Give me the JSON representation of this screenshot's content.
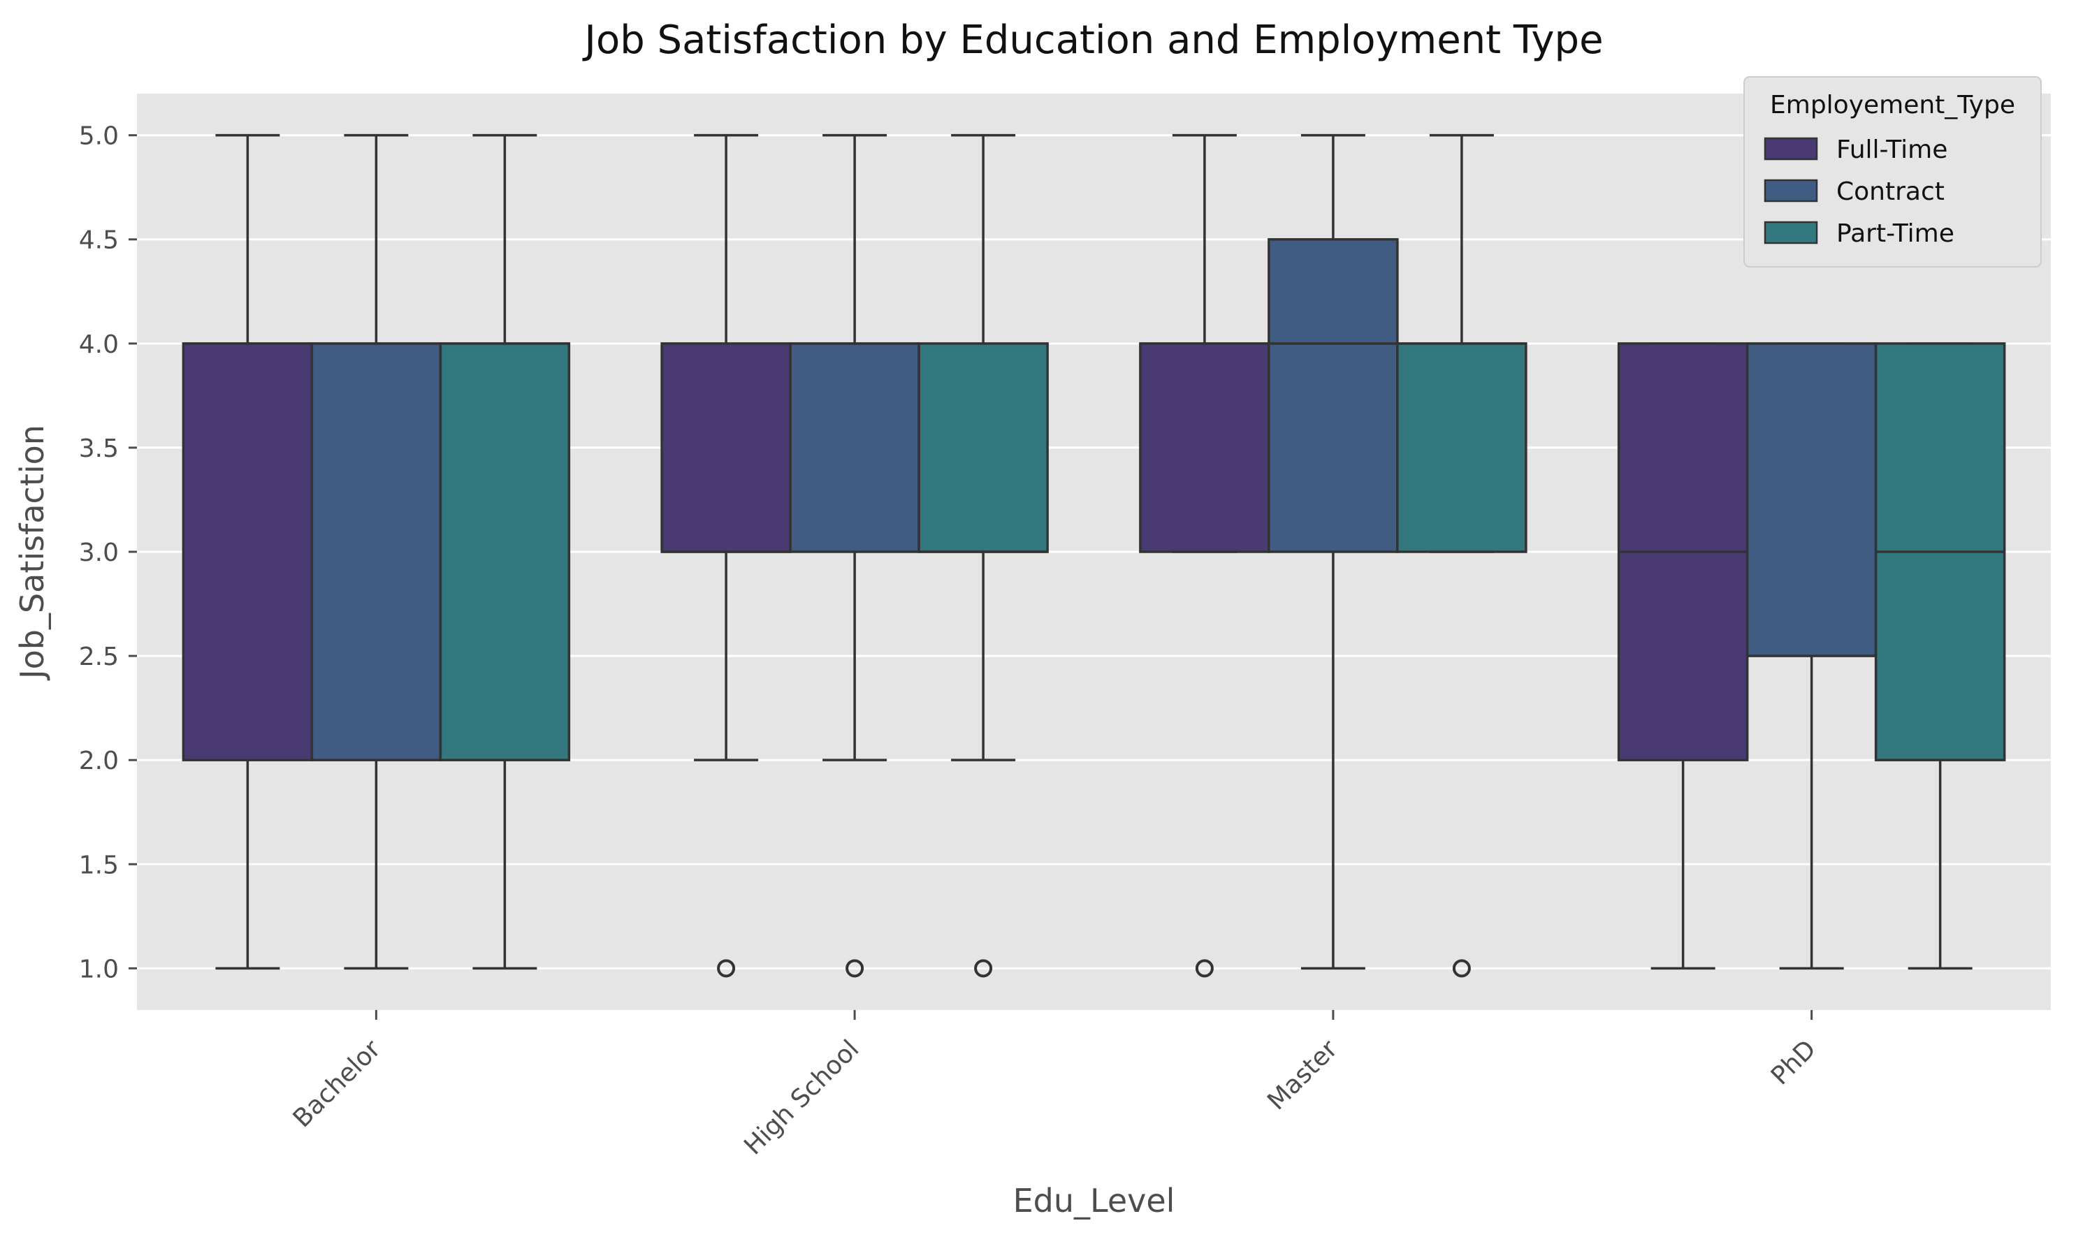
{
  "chart_data": {
    "type": "box",
    "title": "Job Satisfaction by Education and Employment Type",
    "xlabel": "Edu_Level",
    "ylabel": "Job_Satisfaction",
    "ylim": [
      0.8,
      5.2
    ],
    "yticks": [
      "1.0",
      "1.5",
      "2.0",
      "2.5",
      "3.0",
      "3.5",
      "4.0",
      "4.5",
      "5.0"
    ],
    "grid": true,
    "legend": {
      "title": "Employement_Type",
      "position": "top-right"
    },
    "categories": [
      "Bachelor",
      "High School",
      "Master",
      "PhD"
    ],
    "series": [
      {
        "name": "Full-Time",
        "color": "#4a3a73",
        "boxes": [
          {
            "whislo": 1,
            "q1": 2,
            "med": 4,
            "q3": 4,
            "whishi": 5,
            "fliers": []
          },
          {
            "whislo": 2,
            "q1": 3,
            "med": 3,
            "q3": 4,
            "whishi": 5,
            "fliers": [
              1
            ]
          },
          {
            "whislo": 3,
            "q1": 3,
            "med": 4,
            "q3": 4,
            "whishi": 5,
            "fliers": [
              1
            ]
          },
          {
            "whislo": 1,
            "q1": 2,
            "med": 3,
            "q3": 4,
            "whishi": 4,
            "fliers": []
          }
        ]
      },
      {
        "name": "Contract",
        "color": "#405c82",
        "boxes": [
          {
            "whislo": 1,
            "q1": 2,
            "med": 4,
            "q3": 4,
            "whishi": 5,
            "fliers": []
          },
          {
            "whislo": 2,
            "q1": 3,
            "med": 4,
            "q3": 4,
            "whishi": 5,
            "fliers": [
              1
            ]
          },
          {
            "whislo": 1,
            "q1": 3,
            "med": 4,
            "q3": 4.5,
            "whishi": 5,
            "fliers": []
          },
          {
            "whislo": 1,
            "q1": 2.5,
            "med": 4,
            "q3": 4,
            "whishi": 4,
            "fliers": []
          }
        ]
      },
      {
        "name": "Part-Time",
        "color": "#33777f",
        "boxes": [
          {
            "whislo": 1,
            "q1": 2,
            "med": 4,
            "q3": 4,
            "whishi": 5,
            "fliers": []
          },
          {
            "whislo": 2,
            "q1": 3,
            "med": 3,
            "q3": 4,
            "whishi": 5,
            "fliers": [
              1
            ]
          },
          {
            "whislo": 3,
            "q1": 3,
            "med": 4,
            "q3": 4,
            "whishi": 5,
            "fliers": [
              1
            ]
          },
          {
            "whislo": 1,
            "q1": 2,
            "med": 3,
            "q3": 4,
            "whishi": 4,
            "fliers": []
          }
        ]
      }
    ],
    "colors": {
      "plot_background": "#e5e5e5",
      "grid": "#ffffff",
      "box_edge": "#333333",
      "tick_text": "#4d4d4d"
    }
  }
}
